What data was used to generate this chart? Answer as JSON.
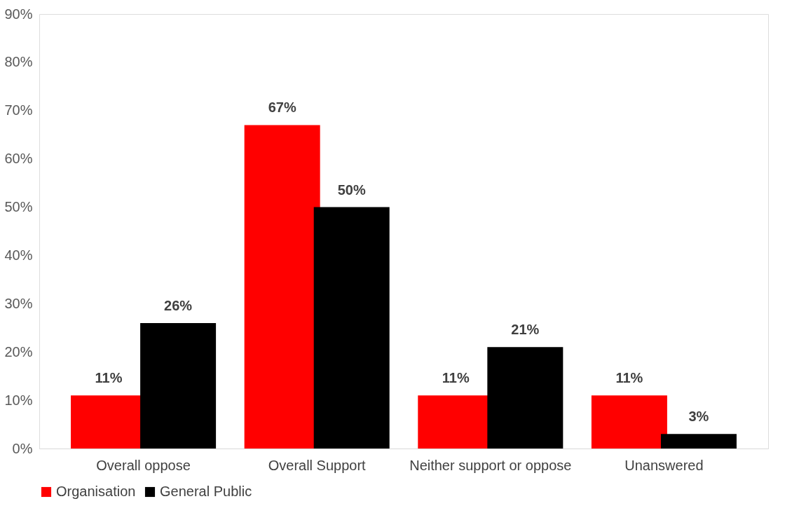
{
  "chart_data": {
    "type": "bar",
    "categories": [
      "Overall oppose",
      "Overall Support",
      "Neither support or oppose",
      "Unanswered"
    ],
    "series": [
      {
        "name": "Organisation",
        "color": "#ff0000",
        "values": [
          11,
          67,
          11,
          11
        ],
        "value_labels": [
          "11%",
          "67%",
          "11%",
          "11%"
        ]
      },
      {
        "name": "General Public",
        "color": "#000000",
        "values": [
          26,
          50,
          21,
          3
        ],
        "value_labels": [
          "26%",
          "50%",
          "21%",
          "3%"
        ]
      }
    ],
    "ylim": [
      0,
      90
    ],
    "yticks": [
      {
        "value": 0,
        "label": "0%"
      },
      {
        "value": 10,
        "label": "10%"
      },
      {
        "value": 20,
        "label": "20%"
      },
      {
        "value": 30,
        "label": "30%"
      },
      {
        "value": 40,
        "label": "40%"
      },
      {
        "value": 50,
        "label": "50%"
      },
      {
        "value": 60,
        "label": "60%"
      },
      {
        "value": 70,
        "label": "70%"
      },
      {
        "value": 80,
        "label": "80%"
      },
      {
        "value": 90,
        "label": "90%"
      }
    ],
    "grid": false,
    "legend": "bottom"
  }
}
